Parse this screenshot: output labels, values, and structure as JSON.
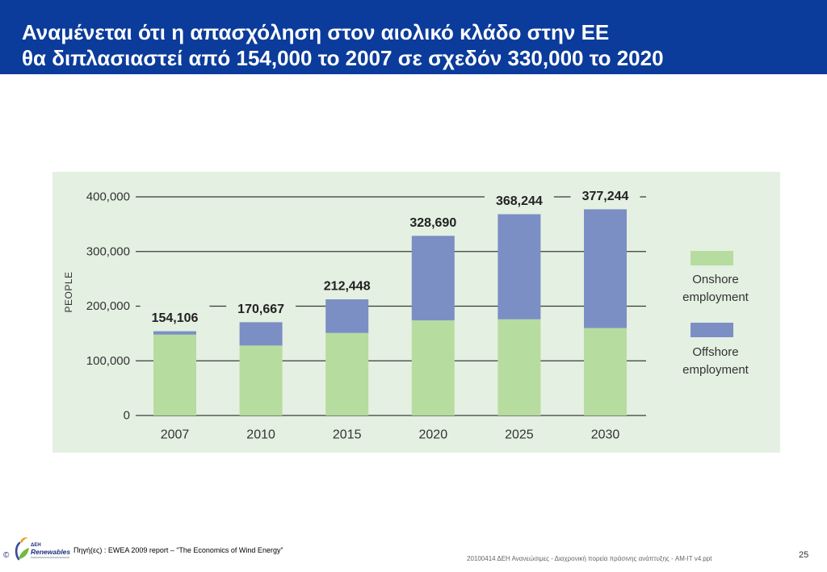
{
  "header": {
    "title_line1": "Αναμένεται ότι η απασχόληση στον αιολικό κλάδο στην ΕΕ",
    "title_line2": "θα διπλασιαστεί από 154,000 το 2007 σε σχεδόν 330,000 το 2020",
    "background": "#0b3b9b",
    "text_color": "#ffffff"
  },
  "chart_data": {
    "type": "bar",
    "stacked": true,
    "categories": [
      "2007",
      "2010",
      "2015",
      "2020",
      "2025",
      "2030"
    ],
    "series": [
      {
        "name": "Onshore employment",
        "color": "#b7dc9f",
        "values": [
          148000,
          128000,
          151000,
          174000,
          176000,
          160000
        ]
      },
      {
        "name": "Offshore employment",
        "color": "#7b8fc4",
        "values": [
          6106,
          42667,
          61448,
          154690,
          192244,
          217244
        ]
      }
    ],
    "totals": [
      154106,
      170667,
      212448,
      328690,
      368244,
      377244
    ],
    "total_labels": [
      "154,106",
      "170,667",
      "212,448",
      "328,690",
      "368,244",
      "377,244"
    ],
    "ylabel": "PEOPLE",
    "ylim": [
      0,
      400000
    ],
    "yticks": [
      0,
      100000,
      200000,
      300000,
      400000
    ],
    "ytick_labels": [
      "0",
      "100,000",
      "200,000",
      "300,000",
      "400,000"
    ],
    "grid": true,
    "legend_position": "right",
    "panel_color": "#e4f0e2"
  },
  "footer": {
    "copyright": "©",
    "logo": {
      "icon": "renewables-logo-icon",
      "brand": "ΔΕΗ",
      "name": "Renewables"
    },
    "source": "Πηγή(ες) : EWEA 2009 report – “The Economics of Wind Energy”",
    "file_info": "20100414 ΔΕΗ Ανανεώσιμες - Διαχρονική πορεία πράσινης ανάπτυξης - AM-IT v4.ppt",
    "page_number": "25"
  }
}
